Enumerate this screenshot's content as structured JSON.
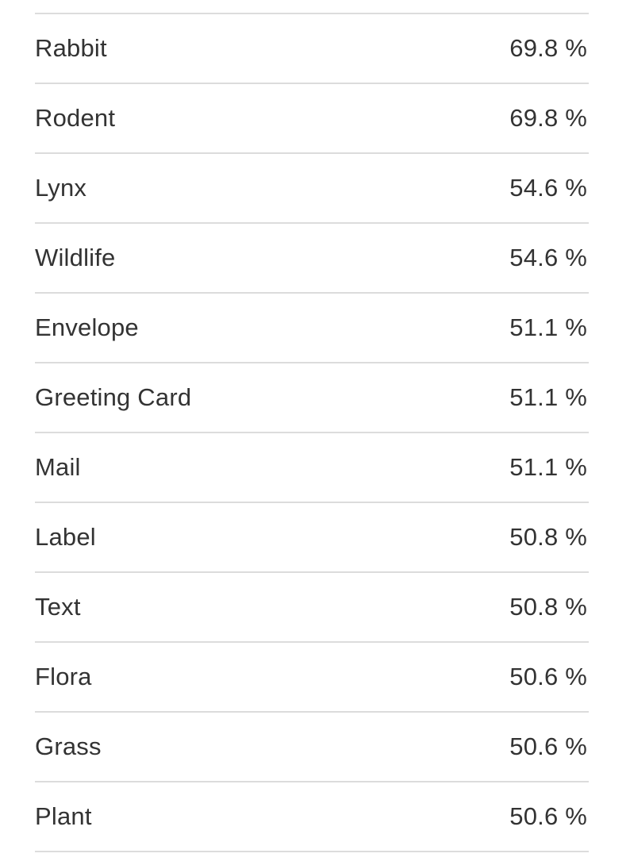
{
  "labels": {
    "rows": [
      {
        "label": "Rabbit",
        "score": "69.8 %"
      },
      {
        "label": "Rodent",
        "score": "69.8 %"
      },
      {
        "label": "Lynx",
        "score": "54.6 %"
      },
      {
        "label": "Wildlife",
        "score": "54.6 %"
      },
      {
        "label": "Envelope",
        "score": "51.1 %"
      },
      {
        "label": "Greeting Card",
        "score": "51.1 %"
      },
      {
        "label": "Mail",
        "score": "51.1 %"
      },
      {
        "label": "Label",
        "score": "50.8 %"
      },
      {
        "label": "Text",
        "score": "50.8 %"
      },
      {
        "label": "Flora",
        "score": "50.6 %"
      },
      {
        "label": "Grass",
        "score": "50.6 %"
      },
      {
        "label": "Plant",
        "score": "50.6 %"
      }
    ]
  }
}
